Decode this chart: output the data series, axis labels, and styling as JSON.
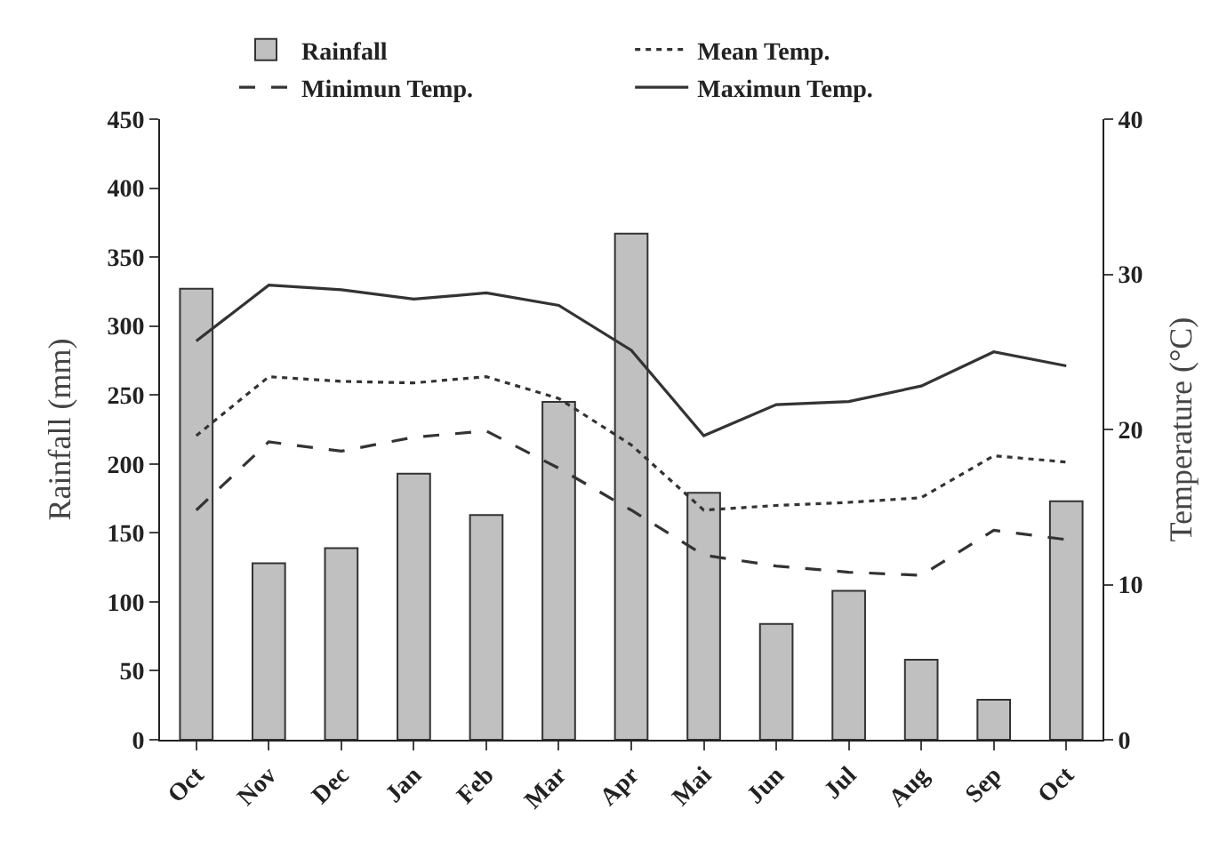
{
  "chart_data": {
    "type": "bar",
    "ylabel": "Rainfall (mm)",
    "y2label": "Temperature (°C)",
    "categories": [
      "Oct",
      "Nov",
      "Dec",
      "Jan",
      "Feb",
      "Mar",
      "Apr",
      "Mai",
      "Jun",
      "Jul",
      "Aug",
      "Sep",
      "Oct"
    ],
    "series": [
      {
        "name": "Rainfall",
        "color": "#c0c0c0",
        "values": [
          327,
          128,
          139,
          193,
          163,
          245,
          367,
          179,
          84,
          108,
          58,
          29,
          173
        ]
      },
      {
        "name": "Mean Temp.",
        "type": "line",
        "axis": "y2",
        "line_style": "dotted",
        "color": "#333333",
        "values": [
          19.6,
          23.4,
          23.1,
          23.0,
          23.4,
          22.0,
          19.0,
          14.8,
          15.1,
          15.3,
          15.6,
          18.3,
          17.9
        ]
      },
      {
        "name": "Minimun Temp.",
        "type": "line",
        "axis": "y2",
        "line_style": "dashed",
        "color": "#333333",
        "values": [
          14.8,
          19.2,
          18.6,
          19.5,
          19.9,
          17.5,
          14.8,
          11.9,
          11.2,
          10.8,
          10.6,
          13.5,
          12.9
        ]
      },
      {
        "name": "Maximun Temp.",
        "type": "line",
        "axis": "y2",
        "line_style": "solid",
        "color": "#333333",
        "values": [
          25.7,
          29.3,
          29.0,
          28.4,
          28.8,
          28.0,
          25.1,
          19.6,
          21.6,
          21.8,
          22.8,
          25.0,
          24.1
        ]
      }
    ],
    "ylim": [
      0,
      450
    ],
    "yticks": [
      0,
      50,
      100,
      150,
      200,
      250,
      300,
      350,
      400,
      450
    ],
    "y2lim": [
      0,
      40
    ],
    "y2ticks": [
      0,
      10,
      20,
      30,
      40
    ],
    "legend": "top",
    "marker": "none"
  }
}
